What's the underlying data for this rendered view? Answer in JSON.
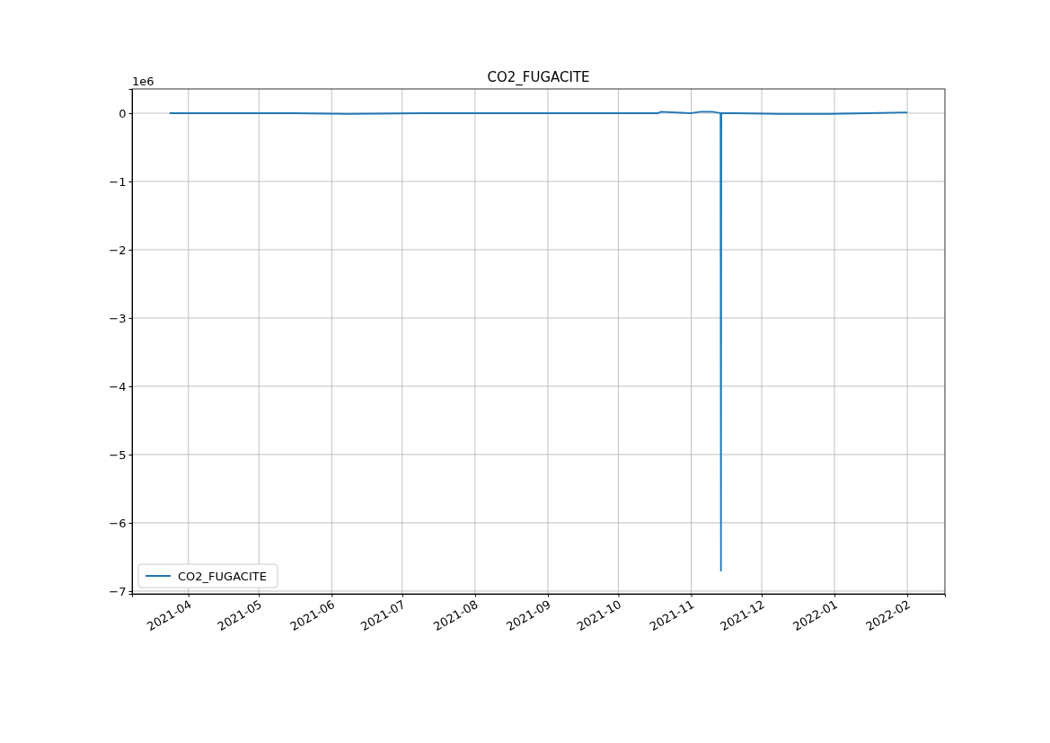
{
  "chart_data": {
    "type": "line",
    "title": "CO2_FUGACITE",
    "x": [
      "2021-03-24",
      "2021-04-03",
      "2021-05-15",
      "2021-06-08",
      "2021-07-10",
      "2021-08-20",
      "2021-09-25",
      "2021-10-18",
      "2021-10-19",
      "2021-11-01",
      "2021-11-05",
      "2021-11-10",
      "2021-11-13T12:00",
      "2021-11-13T16:00",
      "2021-11-13T20:00",
      "2021-11-20",
      "2021-12-08",
      "2021-12-30",
      "2022-01-15",
      "2022-02-01"
    ],
    "series": [
      {
        "name": "CO2_FUGACITE",
        "color": "#1f77b4",
        "values": [
          0,
          0,
          0,
          -0.01,
          0,
          0,
          0,
          0,
          0.02,
          0,
          0.02,
          0.02,
          0,
          -6.7,
          0,
          0,
          -0.01,
          -0.01,
          0,
          0.01
        ]
      }
    ],
    "xlim": [
      "2021-03-08",
      "2022-02-17"
    ],
    "xticks": [
      {
        "value": "2021-04-01",
        "label": "2021-04"
      },
      {
        "value": "2021-05-01",
        "label": "2021-05"
      },
      {
        "value": "2021-06-01",
        "label": "2021-06"
      },
      {
        "value": "2021-07-01",
        "label": "2021-07"
      },
      {
        "value": "2021-08-01",
        "label": "2021-08"
      },
      {
        "value": "2021-09-01",
        "label": "2021-09"
      },
      {
        "value": "2021-10-01",
        "label": "2021-10"
      },
      {
        "value": "2021-11-01",
        "label": "2021-11"
      },
      {
        "value": "2021-12-01",
        "label": "2021-12"
      },
      {
        "value": "2022-01-01",
        "label": "2022-01"
      },
      {
        "value": "2022-02-01",
        "label": "2022-02"
      }
    ],
    "ylim": [
      -7.04,
      0.355
    ],
    "yticks": [
      {
        "value": 0,
        "label": "0"
      },
      {
        "value": -1,
        "label": "−1"
      },
      {
        "value": -2,
        "label": "−2"
      },
      {
        "value": -3,
        "label": "−3"
      },
      {
        "value": -4,
        "label": "−4"
      },
      {
        "value": -5,
        "label": "−5"
      },
      {
        "value": -6,
        "label": "−6"
      },
      {
        "value": -7,
        "label": "−7"
      }
    ],
    "annotations": [
      "1e6"
    ],
    "grid": true,
    "legend": "bottom left",
    "line_style": "solid"
  }
}
